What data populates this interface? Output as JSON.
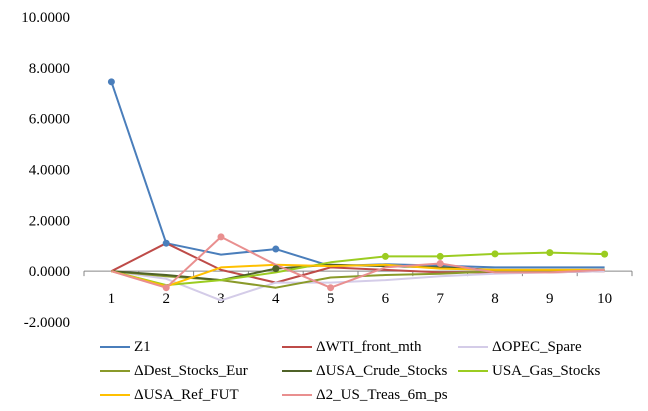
{
  "chart_data": {
    "type": "line",
    "categories": [
      "1",
      "2",
      "3",
      "4",
      "5",
      "6",
      "7",
      "8",
      "9",
      "10"
    ],
    "y_tick_labels": [
      "10.0000",
      "8.0000",
      "6.0000",
      "4.0000",
      "2.0000",
      "0.0000",
      "-2.0000"
    ],
    "ylim": [
      -2,
      10
    ],
    "grid": false,
    "legend_position": "bottom",
    "series": [
      {
        "name": "Z1",
        "color": "#4a7ebb",
        "values": [
          7.45,
          1.1,
          0.65,
          0.87,
          0.2,
          0.27,
          0.22,
          0.15,
          0.15,
          0.15
        ],
        "markers": [
          0,
          1,
          3
        ]
      },
      {
        "name": "ΔWTI_front_mth",
        "color": "#be4b48",
        "values": [
          0.0,
          1.1,
          0.05,
          -0.45,
          0.15,
          0.05,
          -0.05,
          -0.05,
          -0.05,
          0.0
        ],
        "markers": []
      },
      {
        "name": "ΔOPEC_Spare",
        "color": "#d4cce8",
        "values": [
          0.0,
          -0.3,
          -1.15,
          -0.45,
          -0.45,
          -0.35,
          -0.2,
          -0.1,
          -0.05,
          0.0
        ],
        "markers": []
      },
      {
        "name": "ΔDest_Stocks_Eur",
        "color": "#8a9a2a",
        "values": [
          0.0,
          -0.2,
          -0.35,
          -0.65,
          -0.25,
          -0.15,
          -0.1,
          0.0,
          0.0,
          0.05
        ],
        "markers": []
      },
      {
        "name": "ΔUSA_Crude_Stocks",
        "color": "#4f6228",
        "values": [
          0.0,
          -0.15,
          -0.35,
          0.1,
          0.25,
          0.2,
          0.15,
          0.05,
          0.05,
          0.05
        ],
        "markers": [
          3
        ]
      },
      {
        "name": "USA_Gas_Stocks",
        "color": "#9bcc21",
        "values": [
          0.0,
          -0.55,
          -0.35,
          -0.05,
          0.35,
          0.58,
          0.58,
          0.68,
          0.73,
          0.67
        ],
        "markers": [
          5,
          6,
          7,
          8,
          9
        ]
      },
      {
        "name": "ΔUSA_Ref_FUT",
        "color": "#ffc000",
        "values": [
          0.0,
          -0.6,
          0.15,
          0.25,
          0.2,
          0.25,
          0.1,
          0.05,
          0.05,
          0.05
        ],
        "markers": []
      },
      {
        "name": "Δ2_US_Treas_6m_ps",
        "color": "#e98f8f",
        "values": [
          0.0,
          -0.65,
          1.35,
          0.25,
          -0.65,
          0.15,
          0.3,
          -0.05,
          -0.05,
          0.05
        ],
        "markers": [
          1,
          2,
          4,
          6
        ]
      }
    ]
  }
}
